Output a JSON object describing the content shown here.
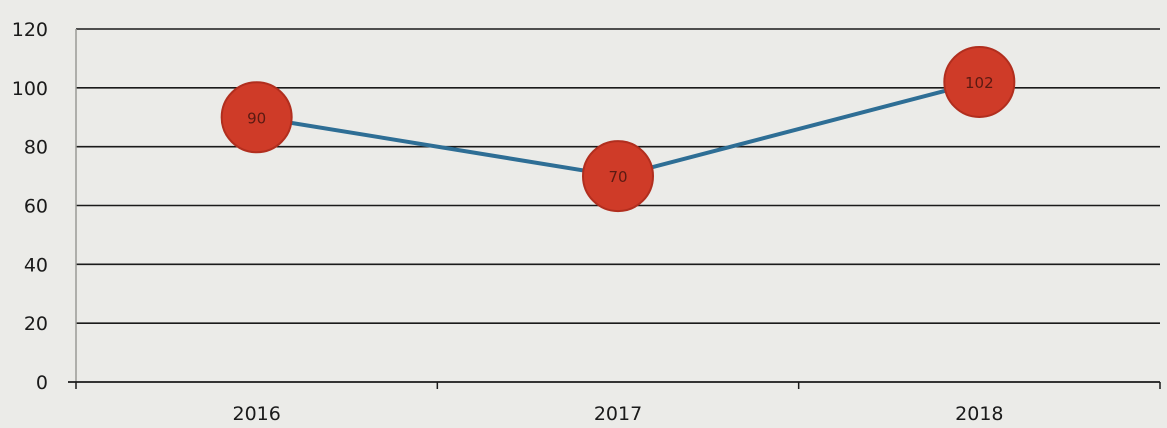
{
  "chart_data": {
    "type": "line",
    "categories": [
      "2016",
      "2017",
      "2018"
    ],
    "series": [
      {
        "values": [
          90,
          70,
          102
        ]
      }
    ],
    "data_labels": [
      "90",
      "70",
      "102"
    ],
    "title": "",
    "xlabel": "",
    "ylabel": "",
    "ylim": [
      0,
      120
    ],
    "yticks": [
      0,
      20,
      40,
      60,
      80,
      100,
      120
    ],
    "grid": true,
    "legend": "none",
    "colors": {
      "line": "#2e6e95",
      "marker": "#cf3b28",
      "marker_edge": "#b12e1e",
      "gridline": "#1a1a1a",
      "background": "#ebebe8"
    }
  }
}
